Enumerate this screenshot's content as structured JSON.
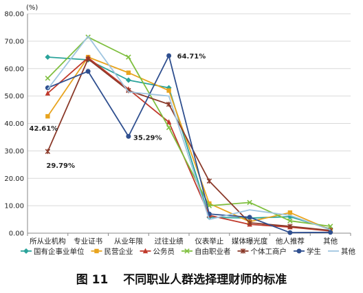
{
  "unit_label": "(%)",
  "caption": {
    "figure": "图 11",
    "title": "不同职业人群选择理财师的标准"
  },
  "chart_data": {
    "type": "line",
    "categories": [
      "所从业机构",
      "专业证书",
      "从业年限",
      "过往业绩",
      "仪表举止",
      "媒体曝光度",
      "他人推荐",
      "其他"
    ],
    "ylim": [
      0,
      80
    ],
    "yticks": [
      "0.00",
      "10.00",
      "20.00",
      "30.00",
      "40.00",
      "50.00",
      "60.00",
      "70.00",
      "80.00"
    ],
    "grid": true,
    "legend_position": "bottom",
    "series": [
      {
        "name": "国有企事业单位",
        "color": "#2aa39a",
        "marker": "diamond",
        "values": [
          64.2,
          63.2,
          55.8,
          53.0,
          5.8,
          5.5,
          6.0,
          1.5
        ]
      },
      {
        "name": "民营企业",
        "color": "#e8a41e",
        "marker": "square",
        "values": [
          42.61,
          64.2,
          58.5,
          52.0,
          10.8,
          4.2,
          7.5,
          1.2
        ]
      },
      {
        "name": "公务员",
        "color": "#c0392b",
        "marker": "triangle",
        "values": [
          51.0,
          64.0,
          52.5,
          40.5,
          6.5,
          3.2,
          2.2,
          0.8
        ]
      },
      {
        "name": "自由职业者",
        "color": "#7fbf3f",
        "marker": "x",
        "values": [
          56.5,
          71.5,
          64.2,
          38.5,
          10.0,
          11.2,
          4.5,
          2.5
        ]
      },
      {
        "name": "个体工商户",
        "color": "#8b3a2a",
        "marker": "star",
        "values": [
          29.79,
          63.5,
          52.0,
          47.0,
          19.0,
          3.8,
          2.5,
          1.0
        ]
      },
      {
        "name": "学生",
        "color": "#2f4f8f",
        "marker": "circle",
        "values": [
          53.0,
          59.0,
          35.29,
          64.71,
          7.0,
          5.8,
          0.2,
          0.3
        ]
      },
      {
        "name": "其他",
        "color": "#9fc5e0",
        "marker": "none",
        "values": [
          52.5,
          71.8,
          51.5,
          50.0,
          5.0,
          8.5,
          6.5,
          1.2
        ]
      }
    ],
    "annotations": [
      {
        "text": "42.61%",
        "series": "民营企业",
        "category": "所从业机构"
      },
      {
        "text": "29.79%",
        "series": "个体工商户",
        "category": "所从业机构"
      },
      {
        "text": "35.29%",
        "series": "学生",
        "category": "从业年限"
      },
      {
        "text": "64.71%",
        "series": "学生",
        "category": "过往业绩"
      }
    ]
  }
}
